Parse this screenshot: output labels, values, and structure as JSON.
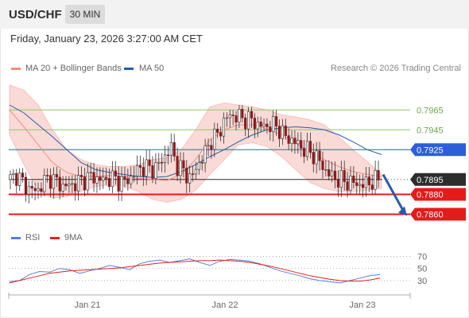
{
  "header": {
    "pair": "USD/CHF",
    "timeframe": "30 MIN"
  },
  "datetime": "Friday, January 23, 2026 3:27:00 AM CET",
  "legend": {
    "ma20": {
      "label": "MA 20 + Bollinger Bands",
      "color": "#f28b82"
    },
    "ma50": {
      "label": "MA 50",
      "color": "#2a5ba8"
    }
  },
  "credit": "Research © 2026 Trading Central",
  "rsi_legend": {
    "rsi": {
      "label": "RSI",
      "color": "#5b7fd6"
    },
    "ma9": {
      "label": "9MA",
      "color": "#e02020"
    }
  },
  "chart_data": {
    "type": "candlestick",
    "price_range": [
      0.785,
      0.8002
    ],
    "x_axis_labels": [
      "Jan 21",
      "Jan 22",
      "Jan 23"
    ],
    "levels": [
      {
        "value": 0.7965,
        "label": "0.7965",
        "color": "#8fc66a",
        "style": "solid"
      },
      {
        "value": 0.7945,
        "label": "0.7945",
        "color": "#8fc66a",
        "style": "solid"
      },
      {
        "value": 0.7925,
        "label": "0.7925",
        "color": "#2b5fd9",
        "style": "solid",
        "tag": true
      },
      {
        "value": 0.7895,
        "label": "0.7895",
        "color": "#2d2d2d",
        "style": "dotted",
        "tag": true
      },
      {
        "value": 0.788,
        "label": "0.7880",
        "color": "#e51b1b",
        "style": "solid",
        "tag": true
      },
      {
        "value": 0.786,
        "label": "0.7860",
        "color": "#e51b1b",
        "style": "solid",
        "tag": true
      }
    ],
    "price_close_path": [
      0.7895,
      0.79,
      0.789,
      0.7885,
      0.7883,
      0.7893,
      0.7897,
      0.7892,
      0.7888,
      0.7889,
      0.7892,
      0.7895,
      0.7898,
      0.7896,
      0.7894,
      0.7897,
      0.7894,
      0.7892,
      0.7897,
      0.7905,
      0.7908,
      0.7905,
      0.7908,
      0.7918,
      0.7927,
      0.7908,
      0.7903,
      0.7895,
      0.791,
      0.792,
      0.7935,
      0.794,
      0.7955,
      0.796,
      0.7958,
      0.7956,
      0.7955,
      0.795,
      0.7948,
      0.795,
      0.7948,
      0.7938,
      0.7935,
      0.793,
      0.7925,
      0.7922,
      0.7915,
      0.7905,
      0.7898,
      0.7895,
      0.7893,
      0.7892,
      0.789,
      0.789,
      0.7893,
      0.7895
    ],
    "bollinger_upper_path": [
      0.799,
      0.7985,
      0.797,
      0.7945,
      0.7925,
      0.7915,
      0.791,
      0.7908,
      0.7908,
      0.791,
      0.7915,
      0.7917,
      0.7925,
      0.7945,
      0.7968,
      0.7972,
      0.797,
      0.7968,
      0.7965,
      0.796,
      0.7958,
      0.7955,
      0.795,
      0.7938,
      0.7925,
      0.7913,
      0.79
    ],
    "bollinger_lower_path": [
      0.794,
      0.791,
      0.7885,
      0.7876,
      0.7878,
      0.7883,
      0.7888,
      0.7889,
      0.7888,
      0.7883,
      0.7875,
      0.7872,
      0.7875,
      0.7884,
      0.79,
      0.7915,
      0.793,
      0.7932,
      0.7928,
      0.7918,
      0.7905,
      0.7892,
      0.7886,
      0.7883,
      0.7883,
      0.7884,
      0.7886
    ],
    "ma20_path": [
      0.7965,
      0.7948,
      0.793,
      0.7912,
      0.7902,
      0.7898,
      0.7898,
      0.7899,
      0.7898,
      0.7896,
      0.7895,
      0.7894,
      0.79,
      0.7915,
      0.7935,
      0.7945,
      0.795,
      0.795,
      0.7946,
      0.794,
      0.7932,
      0.7922,
      0.7915,
      0.7908,
      0.7903,
      0.79,
      0.7898
    ],
    "ma50_path": [
      0.797,
      0.7962,
      0.795,
      0.7938,
      0.7925,
      0.7912,
      0.7905,
      0.7902,
      0.79,
      0.7898,
      0.7897,
      0.7898,
      0.7903,
      0.791,
      0.7918,
      0.7925,
      0.7933,
      0.794,
      0.7945,
      0.7947,
      0.7948,
      0.7947,
      0.7945,
      0.794,
      0.7933,
      0.7925,
      0.792
    ],
    "forecast_arrow": {
      "from": 0.79,
      "to": 0.786
    },
    "rsi": {
      "levels": [
        70,
        50,
        30
      ],
      "range": [
        10,
        80
      ],
      "rsi_path": [
        28,
        30,
        40,
        45,
        44,
        50,
        48,
        42,
        46,
        50,
        55,
        52,
        48,
        58,
        62,
        64,
        60,
        63,
        66,
        60,
        55,
        62,
        65,
        64,
        62,
        58,
        52,
        46,
        42,
        38,
        33,
        30,
        28,
        26,
        30,
        34,
        38,
        40
      ],
      "ma9_path": [
        26,
        30,
        34,
        38,
        42,
        44,
        46,
        47,
        48,
        49,
        50,
        51,
        53,
        55,
        57,
        59,
        60,
        61,
        62,
        63,
        63,
        64,
        63,
        62,
        60,
        57,
        54,
        50,
        46,
        42,
        38,
        35,
        32,
        30,
        29,
        29,
        31,
        34
      ]
    }
  }
}
